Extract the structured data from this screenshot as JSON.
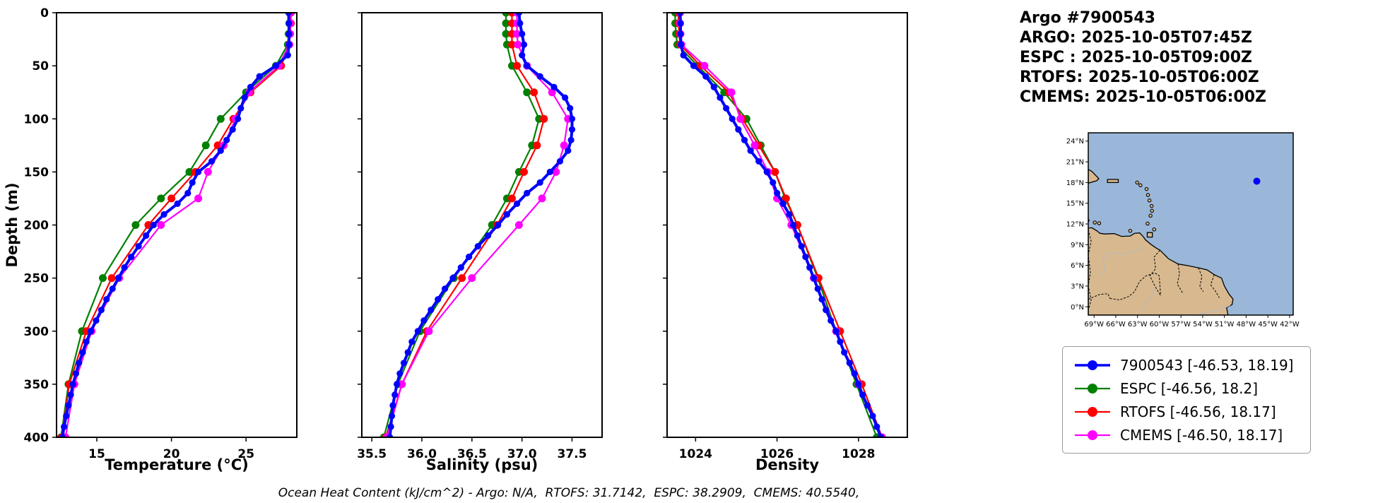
{
  "header": {
    "title": "Argo #7900543",
    "lines": [
      "ARGO: 2025-10-05T07:45Z",
      "ESPC : 2025-10-05T09:00Z",
      "RTOFS: 2025-10-05T06:00Z",
      "CMEMS: 2025-10-05T06:00Z"
    ]
  },
  "footer": "Ocean Heat Content (kJ/cm^2) - Argo: N/A,  RTOFS: 31.7142,  ESPC: 38.2909,  CMEMS: 40.5540,",
  "colors": {
    "argo": "#0000ff",
    "espc": "#008000",
    "rtofs": "#ff0000",
    "cmems": "#ff00ff",
    "ocean": "#9ab7d9",
    "land": "#d8b98f",
    "river": "#b8b8b8"
  },
  "legend": {
    "entries": [
      {
        "name": "argo",
        "label": "7900543 [-46.53, 18.19]",
        "color": "#0000ff"
      },
      {
        "name": "espc",
        "label": "ESPC [-46.56, 18.2]",
        "color": "#008000"
      },
      {
        "name": "rtofs",
        "label": "RTOFS [-46.56, 18.17]",
        "color": "#ff0000"
      },
      {
        "name": "cmems",
        "label": "CMEMS [-46.50, 18.17]",
        "color": "#ff00ff"
      }
    ]
  },
  "depth_levels": {
    "argo": [
      0,
      10,
      20,
      30,
      40,
      50,
      60,
      70,
      80,
      90,
      100,
      110,
      120,
      130,
      140,
      150,
      160,
      170,
      180,
      190,
      200,
      210,
      220,
      230,
      240,
      250,
      260,
      270,
      280,
      290,
      300,
      310,
      320,
      330,
      340,
      350,
      360,
      370,
      380,
      390,
      400
    ],
    "model": [
      0,
      10,
      20,
      30,
      50,
      75,
      100,
      125,
      150,
      175,
      200,
      250,
      300,
      350,
      400
    ]
  },
  "chart_data": [
    {
      "type": "line",
      "xlabel": "Temperature (°C)",
      "ylabel": "Depth (m)",
      "xlim": [
        12.3,
        28.4
      ],
      "ylim": [
        400,
        0
      ],
      "grid": false,
      "xticks": [
        {
          "v": 15,
          "label": "15"
        },
        {
          "v": 20,
          "label": "20"
        },
        {
          "v": 25,
          "label": "25"
        }
      ],
      "yticks": [
        {
          "v": 0,
          "label": "0"
        },
        {
          "v": 50,
          "label": "50"
        },
        {
          "v": 100,
          "label": "100"
        },
        {
          "v": 150,
          "label": "150"
        },
        {
          "v": 200,
          "label": "200"
        },
        {
          "v": 250,
          "label": "250"
        },
        {
          "v": 300,
          "label": "300"
        },
        {
          "v": 350,
          "label": "350"
        },
        {
          "v": 400,
          "label": "400"
        }
      ],
      "series": [
        {
          "name": "ESPC",
          "color": "#008000",
          "lw": 2.2,
          "ms": 5.5,
          "depths": "model",
          "values": [
            27.9,
            27.9,
            27.85,
            27.8,
            27.0,
            25.0,
            23.3,
            22.3,
            21.2,
            19.3,
            17.6,
            15.4,
            14.0,
            13.1,
            12.6
          ]
        },
        {
          "name": "RTOFS",
          "color": "#ff0000",
          "lw": 2.2,
          "ms": 5.5,
          "depths": "model",
          "values": [
            28.0,
            28.0,
            27.95,
            27.9,
            27.35,
            25.3,
            24.15,
            23.1,
            21.6,
            20.0,
            18.45,
            16.0,
            14.3,
            13.15,
            12.65
          ]
        },
        {
          "name": "CMEMS",
          "color": "#ff00ff",
          "lw": 2.2,
          "ms": 5.5,
          "depths": "model",
          "values": [
            27.95,
            27.95,
            27.95,
            27.9,
            27.2,
            25.2,
            24.3,
            23.5,
            22.45,
            21.8,
            19.3,
            16.5,
            14.65,
            13.5,
            12.9
          ]
        },
        {
          "name": "7900543",
          "color": "#0000ff",
          "lw": 4,
          "ms": 4.6,
          "depths": "argo",
          "values": [
            27.85,
            27.87,
            27.88,
            27.88,
            27.8,
            27.0,
            25.9,
            25.3,
            24.9,
            24.65,
            24.45,
            24.1,
            23.7,
            23.3,
            22.7,
            21.8,
            21.4,
            21.1,
            20.4,
            19.5,
            18.8,
            18.3,
            17.8,
            17.3,
            16.85,
            16.45,
            16.05,
            15.65,
            15.3,
            14.95,
            14.6,
            14.3,
            14.05,
            13.8,
            13.6,
            13.4,
            13.25,
            13.1,
            12.95,
            12.8,
            12.7
          ]
        }
      ]
    },
    {
      "type": "line",
      "xlabel": "Salinity (psu)",
      "xlim": [
        35.4,
        37.8
      ],
      "ylim": [
        400,
        0
      ],
      "grid": false,
      "xticks": [
        {
          "v": 35.5,
          "label": "35.5"
        },
        {
          "v": 36.0,
          "label": "36.0"
        },
        {
          "v": 36.5,
          "label": "36.5"
        },
        {
          "v": 37.0,
          "label": "37.0"
        },
        {
          "v": 37.5,
          "label": "37.5"
        }
      ],
      "yticks": [
        {
          "v": 0,
          "label": "0"
        },
        {
          "v": 50,
          "label": "50"
        },
        {
          "v": 100,
          "label": "100"
        },
        {
          "v": 150,
          "label": "150"
        },
        {
          "v": 200,
          "label": "200"
        },
        {
          "v": 250,
          "label": "250"
        },
        {
          "v": 300,
          "label": "300"
        },
        {
          "v": 350,
          "label": "350"
        },
        {
          "v": 400,
          "label": "400"
        }
      ],
      "series": [
        {
          "name": "ESPC",
          "color": "#008000",
          "lw": 2.2,
          "ms": 5.5,
          "depths": "model",
          "values": [
            36.84,
            36.84,
            36.84,
            36.85,
            36.9,
            37.05,
            37.17,
            37.1,
            36.97,
            36.85,
            36.7,
            36.32,
            35.98,
            35.76,
            35.62
          ]
        },
        {
          "name": "RTOFS",
          "color": "#ff0000",
          "lw": 2.2,
          "ms": 5.5,
          "depths": "model",
          "values": [
            36.9,
            36.9,
            36.9,
            36.9,
            36.95,
            37.12,
            37.22,
            37.15,
            37.02,
            36.9,
            36.75,
            36.4,
            36.05,
            35.8,
            35.64
          ]
        },
        {
          "name": "CMEMS",
          "color": "#ff00ff",
          "lw": 2.2,
          "ms": 5.5,
          "depths": "model",
          "values": [
            36.95,
            36.95,
            36.95,
            36.96,
            37.05,
            37.3,
            37.46,
            37.42,
            37.34,
            37.2,
            36.97,
            36.5,
            36.07,
            35.8,
            35.65
          ]
        },
        {
          "name": "7900543",
          "color": "#0000ff",
          "lw": 4,
          "ms": 4.6,
          "depths": "argo",
          "values": [
            36.97,
            36.98,
            37.0,
            37.02,
            37.0,
            37.05,
            37.18,
            37.32,
            37.43,
            37.48,
            37.5,
            37.5,
            37.49,
            37.46,
            37.38,
            37.28,
            37.18,
            37.05,
            36.95,
            36.85,
            36.76,
            36.66,
            36.56,
            36.47,
            36.39,
            36.31,
            36.23,
            36.16,
            36.09,
            36.02,
            35.96,
            35.9,
            35.86,
            35.82,
            35.78,
            35.75,
            35.73,
            35.71,
            35.7,
            35.69,
            35.68
          ]
        }
      ]
    },
    {
      "type": "line",
      "xlabel": "Density",
      "xlim": [
        1023.3,
        1029.2
      ],
      "ylim": [
        400,
        0
      ],
      "grid": false,
      "xticks": [
        {
          "v": 1024,
          "label": "1024"
        },
        {
          "v": 1026,
          "label": "1026"
        },
        {
          "v": 1028,
          "label": "1028"
        }
      ],
      "yticks": [
        {
          "v": 0,
          "label": "0"
        },
        {
          "v": 50,
          "label": "50"
        },
        {
          "v": 100,
          "label": "100"
        },
        {
          "v": 150,
          "label": "150"
        },
        {
          "v": 200,
          "label": "200"
        },
        {
          "v": 250,
          "label": "250"
        },
        {
          "v": 300,
          "label": "300"
        },
        {
          "v": 350,
          "label": "350"
        },
        {
          "v": 400,
          "label": "400"
        }
      ],
      "series": [
        {
          "name": "ESPC",
          "color": "#008000",
          "lw": 2.2,
          "ms": 5.5,
          "depths": "model",
          "values": [
            1023.5,
            1023.5,
            1023.52,
            1023.55,
            1024.05,
            1024.7,
            1025.25,
            1025.6,
            1025.95,
            1026.2,
            1026.5,
            1027.0,
            1027.45,
            1027.95,
            1028.45
          ]
        },
        {
          "name": "RTOFS",
          "color": "#ff0000",
          "lw": 2.2,
          "ms": 5.5,
          "depths": "model",
          "values": [
            1023.58,
            1023.58,
            1023.6,
            1023.62,
            1024.12,
            1024.82,
            1025.15,
            1025.55,
            1025.95,
            1026.22,
            1026.5,
            1027.02,
            1027.55,
            1028.08,
            1028.58
          ]
        },
        {
          "name": "CMEMS",
          "color": "#ff00ff",
          "lw": 2.2,
          "ms": 5.5,
          "depths": "model",
          "values": [
            1023.62,
            1023.62,
            1023.63,
            1023.65,
            1024.22,
            1024.88,
            1025.1,
            1025.45,
            1025.78,
            1026.0,
            1026.35,
            1026.9,
            1027.45,
            1028.0,
            1028.58
          ]
        },
        {
          "name": "7900543",
          "color": "#0000ff",
          "lw": 4,
          "ms": 4.6,
          "depths": "argo",
          "values": [
            1023.62,
            1023.63,
            1023.63,
            1023.64,
            1023.7,
            1023.95,
            1024.25,
            1024.45,
            1024.6,
            1024.75,
            1024.9,
            1025.05,
            1025.2,
            1025.35,
            1025.55,
            1025.75,
            1025.9,
            1026.0,
            1026.15,
            1026.3,
            1026.4,
            1026.5,
            1026.6,
            1026.7,
            1026.8,
            1026.9,
            1027.0,
            1027.1,
            1027.2,
            1027.32,
            1027.45,
            1027.55,
            1027.65,
            1027.78,
            1027.9,
            1028.0,
            1028.1,
            1028.22,
            1028.35,
            1028.45,
            1028.55
          ]
        }
      ]
    }
  ],
  "map": {
    "extent": {
      "lon": [
        -69.8,
        -41.5
      ],
      "lat": [
        -1.2,
        25.2
      ]
    },
    "lon_ticks": [
      {
        "v": -69,
        "label": "69°W"
      },
      {
        "v": -66,
        "label": "66°W"
      },
      {
        "v": -63,
        "label": "63°W"
      },
      {
        "v": -60,
        "label": "60°W"
      },
      {
        "v": -57,
        "label": "57°W"
      },
      {
        "v": -54,
        "label": "54°W"
      },
      {
        "v": -51,
        "label": "51°W"
      },
      {
        "v": -48,
        "label": "48°W"
      },
      {
        "v": -45,
        "label": "45°W"
      },
      {
        "v": -42,
        "label": "42°W"
      }
    ],
    "lat_ticks": [
      {
        "v": 0,
        "label": "0°N"
      },
      {
        "v": 3,
        "label": "3°N"
      },
      {
        "v": 6,
        "label": "6°N"
      },
      {
        "v": 9,
        "label": "9°N"
      },
      {
        "v": 12,
        "label": "12°N"
      },
      {
        "v": 15,
        "label": "15°N"
      },
      {
        "v": 18,
        "label": "18°N"
      },
      {
        "v": 21,
        "label": "21°N"
      },
      {
        "v": 24,
        "label": "24°N"
      }
    ],
    "marker": {
      "lon": -46.53,
      "lat": 18.19,
      "color": "#0000ff"
    },
    "land": [
      [
        [
          -69.8,
          11.4
        ],
        [
          -69.3,
          11.45
        ],
        [
          -68.6,
          11.0
        ],
        [
          -68.2,
          10.65
        ],
        [
          -67.6,
          10.55
        ],
        [
          -66.2,
          10.6
        ],
        [
          -65.2,
          10.2
        ],
        [
          -64.0,
          10.25
        ],
        [
          -63.4,
          10.65
        ],
        [
          -62.7,
          10.7
        ],
        [
          -62.2,
          10.15
        ],
        [
          -61.9,
          9.7
        ],
        [
          -61.1,
          9.0
        ],
        [
          -60.4,
          8.5
        ],
        [
          -59.9,
          8.2
        ],
        [
          -58.7,
          6.95
        ],
        [
          -57.4,
          6.2
        ],
        [
          -56.0,
          5.95
        ],
        [
          -54.6,
          5.65
        ],
        [
          -53.4,
          5.35
        ],
        [
          -52.4,
          4.65
        ],
        [
          -51.4,
          4.15
        ],
        [
          -51.0,
          3.0
        ],
        [
          -50.4,
          1.9
        ],
        [
          -49.8,
          1.1
        ],
        [
          -49.95,
          0.3
        ],
        [
          -50.7,
          -0.1
        ],
        [
          -50.5,
          -1.2
        ],
        [
          -69.8,
          -1.2
        ]
      ],
      [
        [
          -61.65,
          10.1
        ],
        [
          -60.95,
          10.1
        ],
        [
          -60.95,
          10.75
        ],
        [
          -61.65,
          10.75
        ]
      ],
      [
        [
          -67.15,
          18.0
        ],
        [
          -65.65,
          18.0
        ],
        [
          -65.65,
          18.45
        ],
        [
          -67.15,
          18.45
        ]
      ],
      [
        [
          -69.8,
          19.9
        ],
        [
          -69.3,
          19.6
        ],
        [
          -68.7,
          18.95
        ],
        [
          -68.35,
          18.55
        ],
        [
          -68.65,
          18.25
        ],
        [
          -69.8,
          17.9
        ]
      ]
    ],
    "islands": [
      [
        -61.6,
        12.05
      ],
      [
        -61.2,
        13.2
      ],
      [
        -61.0,
        13.9
      ],
      [
        -61.05,
        14.6
      ],
      [
        -61.35,
        15.4
      ],
      [
        -61.55,
        16.2
      ],
      [
        -61.75,
        17.05
      ],
      [
        -62.6,
        17.6
      ],
      [
        -63.05,
        18.0
      ],
      [
        -69.9,
        12.5
      ],
      [
        -68.9,
        12.2
      ],
      [
        -68.3,
        12.1
      ],
      [
        -60.7,
        11.2
      ],
      [
        -64.0,
        11.0
      ]
    ],
    "borders": [
      [
        [
          -69.8,
          11.2
        ],
        [
          -69.4,
          9.5
        ],
        [
          -69.8,
          7.5
        ],
        [
          -69.5,
          5.0
        ],
        [
          -69.8,
          3.0
        ],
        [
          -69.4,
          1.0
        ],
        [
          -69.8,
          -0.5
        ]
      ],
      [
        [
          -59.9,
          8.2
        ],
        [
          -60.7,
          7.2
        ],
        [
          -60.5,
          5.5
        ],
        [
          -61.3,
          4.5
        ],
        [
          -60.6,
          3.0
        ],
        [
          -59.8,
          1.6
        ]
      ],
      [
        [
          -57.4,
          6.2
        ],
        [
          -57.2,
          4.8
        ],
        [
          -57.5,
          3.3
        ],
        [
          -56.7,
          1.9
        ]
      ],
      [
        [
          -54.6,
          5.65
        ],
        [
          -54.1,
          4.4
        ],
        [
          -54.4,
          2.9
        ],
        [
          -53.9,
          2.2
        ]
      ],
      [
        [
          -52.4,
          4.65
        ],
        [
          -52.9,
          3.2
        ],
        [
          -52.2,
          2.2
        ],
        [
          -51.7,
          1.3
        ]
      ],
      [
        [
          -66.8,
          1.2
        ],
        [
          -65.5,
          1.0
        ],
        [
          -64.2,
          1.5
        ],
        [
          -63.4,
          2.2
        ],
        [
          -62.7,
          3.7
        ],
        [
          -61.8,
          4.5
        ],
        [
          -60.6,
          4.9
        ],
        [
          -60.0,
          4.5
        ],
        [
          -59.8,
          1.6
        ]
      ],
      [
        [
          -69.8,
          1.1
        ],
        [
          -68.2,
          1.8
        ],
        [
          -67.1,
          1.9
        ],
        [
          -66.8,
          1.2
        ]
      ]
    ],
    "rivers": [
      [
        [
          -62.2,
          8.6
        ],
        [
          -63.6,
          8.0
        ],
        [
          -65.2,
          7.6
        ],
        [
          -66.8,
          7.9
        ],
        [
          -67.8,
          6.8
        ],
        [
          -67.5,
          5.6
        ],
        [
          -67.9,
          4.5
        ]
      ],
      [
        [
          -50.2,
          0.2
        ],
        [
          -52.0,
          -0.6
        ],
        [
          -54.8,
          -1.1
        ]
      ],
      [
        [
          -60.2,
          3.1
        ],
        [
          -61.1,
          1.6
        ],
        [
          -62.0,
          0.3
        ],
        [
          -62.8,
          -0.9
        ]
      ]
    ]
  }
}
